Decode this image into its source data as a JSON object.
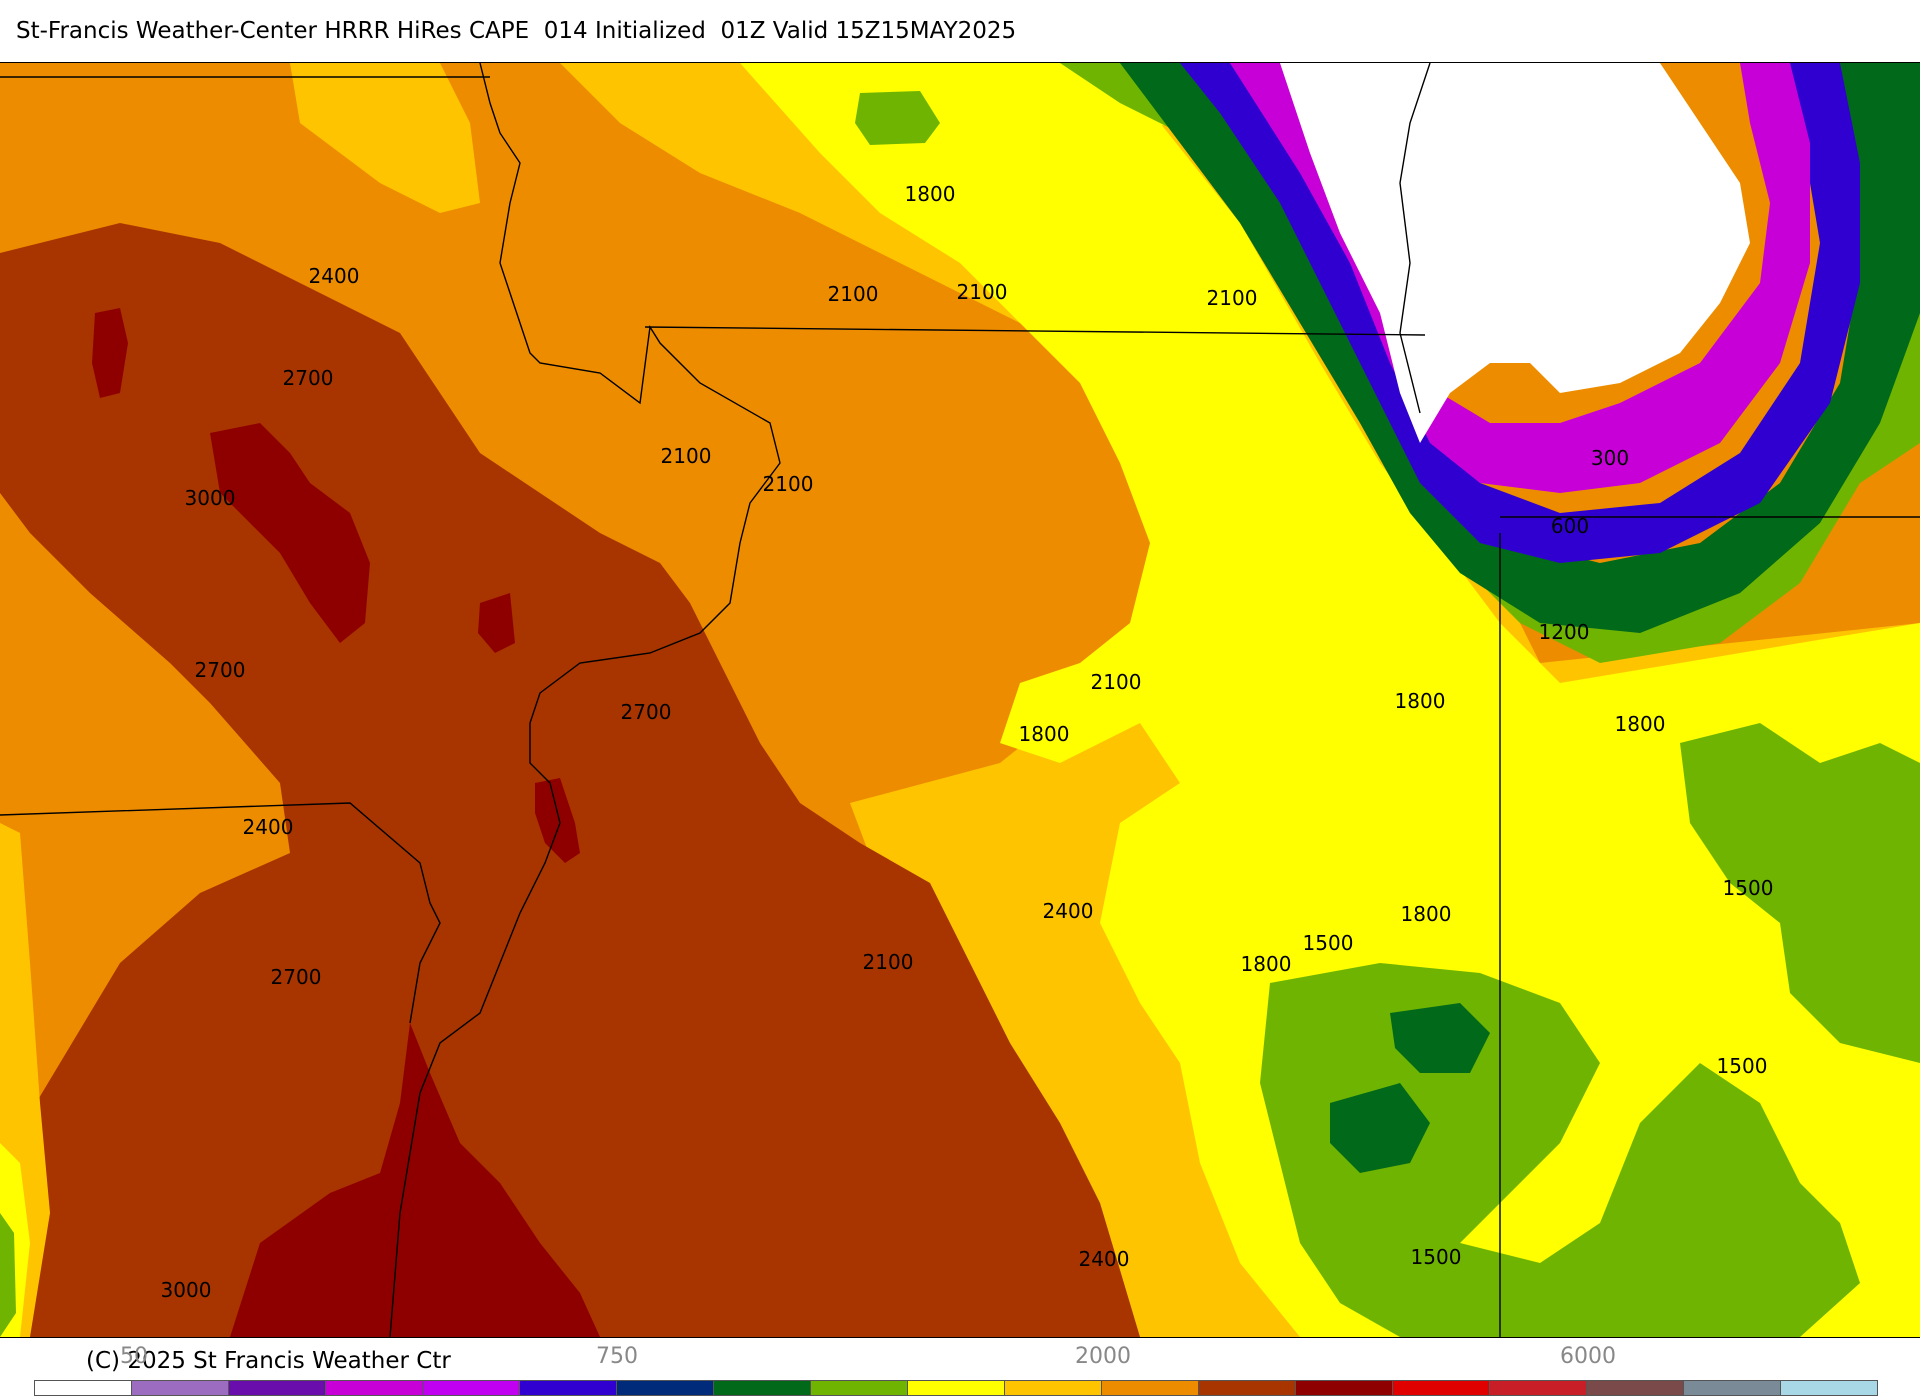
{
  "title": "St-Francis Weather-Center HRRR HiRes CAPE  014 Initialized  01Z Valid 15Z15MAY2025",
  "copyright": "(C) 2025 St Francis Weather Ctr",
  "contour_labels": [
    "1800",
    "2400",
    "2100",
    "2100",
    "2100",
    "2700",
    "2100",
    "2100",
    "3000",
    "2700",
    "2700",
    "2100",
    "1800",
    "1800",
    "1800",
    "2400",
    "2400",
    "2700",
    "2100",
    "1800",
    "1500",
    "1800",
    "1500",
    "1500",
    "2400",
    "1500",
    "3000",
    "300",
    "600",
    "1200"
  ],
  "colorbar_ticks": [
    "50",
    "750",
    "2000",
    "6000"
  ],
  "colorbar_colors": [
    "#ffffff",
    "#9b6cbf",
    "#6a0dad",
    "#c800d8",
    "#c000f0",
    "#3000d0",
    "#002a7a",
    "#006a1a",
    "#6fb400",
    "#ffff00",
    "#ffc400",
    "#ee8c00",
    "#a83400",
    "#8e0000",
    "#e00000",
    "#c81e28",
    "#7a4a4a",
    "#7a8a96",
    "#a8d8e6"
  ],
  "colors": {
    "c0": "#ffffff",
    "c300": "#9b6cbf",
    "c450": "#6a0dad",
    "c600": "#c800d8",
    "c750": "#3000d0",
    "c900": "#002a7a",
    "c1000": "#006a1a",
    "c1500": "#6fb400",
    "c1750": "#ffff00",
    "c2000": "#ffc400",
    "c2250": "#ee8c00",
    "c2500": "#a83400",
    "c3000": "#8e0000"
  }
}
